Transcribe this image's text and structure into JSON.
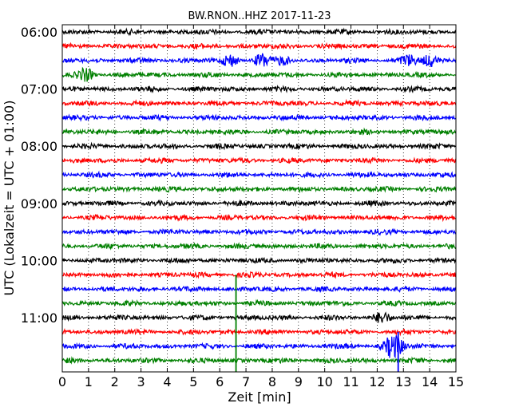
{
  "chart_data": {
    "type": "line",
    "title": "BW.RNON..HHZ 2017-11-23",
    "xlabel": "Zeit  [min]",
    "ylabel": "UTC (Lokalzeit = UTC + 01:00)",
    "xlim": [
      0,
      15
    ],
    "x_ticks": [
      "0",
      "1",
      "2",
      "3",
      "4",
      "5",
      "6",
      "7",
      "8",
      "9",
      "10",
      "11",
      "12",
      "13",
      "14",
      "15"
    ],
    "y_tick_labels": [
      "06:00",
      "07:00",
      "08:00",
      "09:00",
      "10:00",
      "11:00"
    ],
    "trace_start_times": [
      "06:00",
      "06:15",
      "06:30",
      "06:45",
      "07:00",
      "07:15",
      "07:30",
      "07:45",
      "08:00",
      "08:15",
      "08:30",
      "08:45",
      "09:00",
      "09:15",
      "09:30",
      "09:45",
      "10:00",
      "10:15",
      "10:30",
      "10:45",
      "11:00",
      "11:15",
      "11:30",
      "11:45"
    ],
    "colors": [
      "#000000",
      "#ff0000",
      "#0000ff",
      "#008000"
    ],
    "grid": "vertical dotted lines at each minute",
    "events": [
      {
        "trace": "06:30",
        "minute": 6.4,
        "amplitude": 1.6
      },
      {
        "trace": "06:30",
        "minute": 7.6,
        "amplitude": 1.8
      },
      {
        "trace": "06:30",
        "minute": 8.4,
        "amplitude": 1.1
      },
      {
        "trace": "06:30",
        "minute": 13.2,
        "amplitude": 1.4
      },
      {
        "trace": "06:30",
        "minute": 14.0,
        "amplitude": 1.6
      },
      {
        "trace": "06:45",
        "minute": 0.9,
        "amplitude": 1.6
      },
      {
        "trace": "11:00",
        "minute": 12.2,
        "amplitude": 1.5
      },
      {
        "trace": "11:30",
        "minute": 12.5,
        "amplitude": 2.3
      },
      {
        "trace": "11:30",
        "minute": 12.8,
        "amplitude": 1.8
      }
    ],
    "spikes": [
      {
        "trace": "10:15",
        "minute": 6.62,
        "color": "#008000",
        "to_trace": "11:45"
      },
      {
        "trace": "11:15",
        "minute": 12.8,
        "color": "#0000ff",
        "to_trace": "11:45"
      }
    ]
  }
}
